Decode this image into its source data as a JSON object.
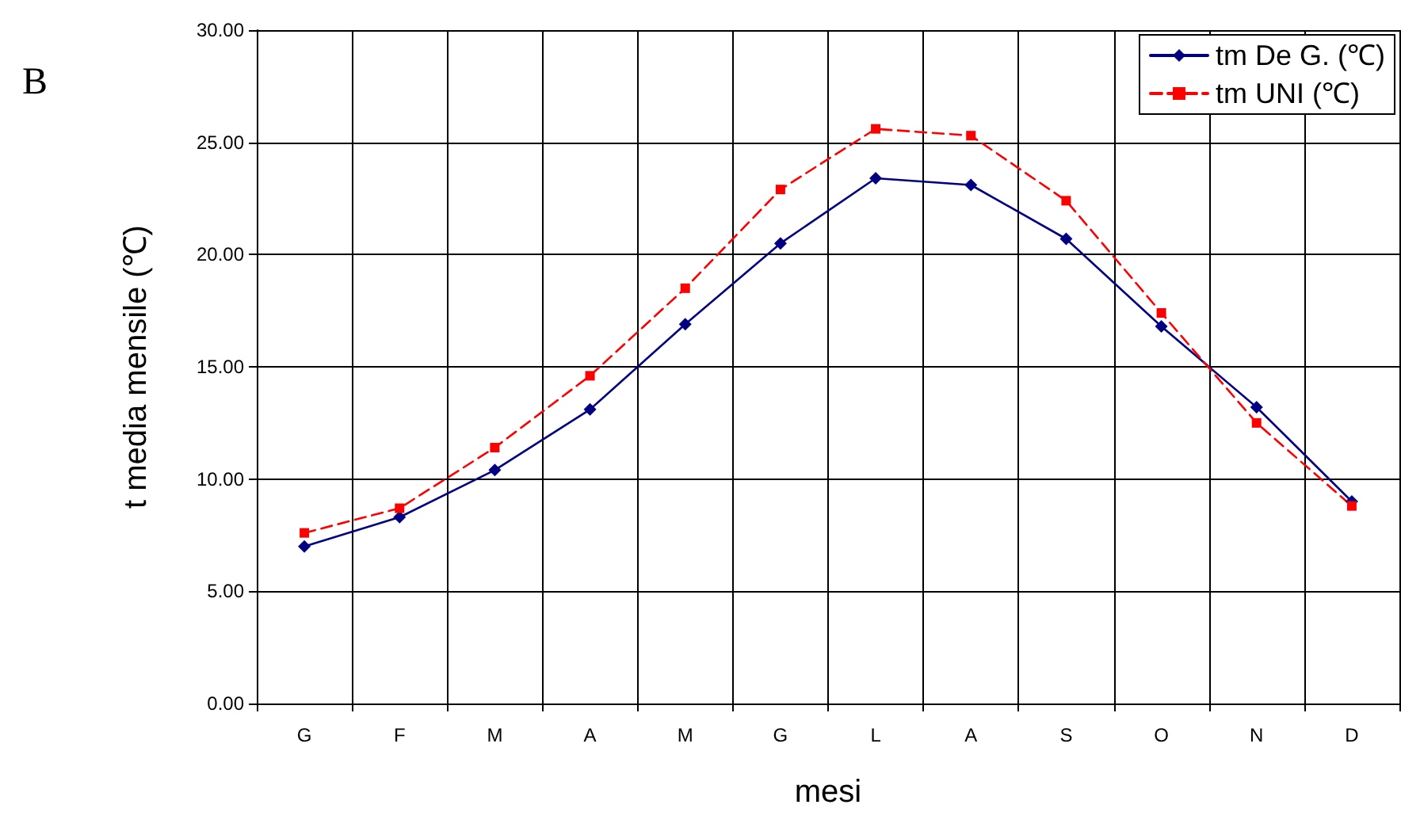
{
  "chart_data": {
    "type": "line",
    "xlabel": "mesi",
    "ylabel": "t media mensile (℃)",
    "annotations": [
      "B"
    ],
    "categories": [
      "G",
      "F",
      "M",
      "A",
      "M",
      "G",
      "L",
      "A",
      "S",
      "O",
      "N",
      "D"
    ],
    "series": [
      {
        "name": "tm De G. (℃)",
        "color": "#000080",
        "marker": "diamond",
        "line_style": "solid",
        "values": [
          7.0,
          8.3,
          10.4,
          13.1,
          16.9,
          20.5,
          23.4,
          23.1,
          20.7,
          16.8,
          13.2,
          9.0
        ]
      },
      {
        "name": "tm UNI (℃)",
        "color": "#ff0000",
        "marker": "square",
        "line_style": "dashed",
        "values": [
          7.6,
          8.7,
          11.4,
          14.6,
          18.5,
          22.9,
          25.6,
          25.3,
          22.4,
          17.4,
          12.5,
          8.8
        ]
      }
    ],
    "ylim": [
      0,
      30
    ],
    "yticks": [
      {
        "value": 0,
        "label": "0.00"
      },
      {
        "value": 5,
        "label": "5.00"
      },
      {
        "value": 10,
        "label": "10.00"
      },
      {
        "value": 15,
        "label": "15.00"
      },
      {
        "value": 20,
        "label": "20.00"
      },
      {
        "value": 25,
        "label": "25.00"
      },
      {
        "value": 30,
        "label": "30.00"
      }
    ],
    "grid": true,
    "legend": "top right"
  }
}
